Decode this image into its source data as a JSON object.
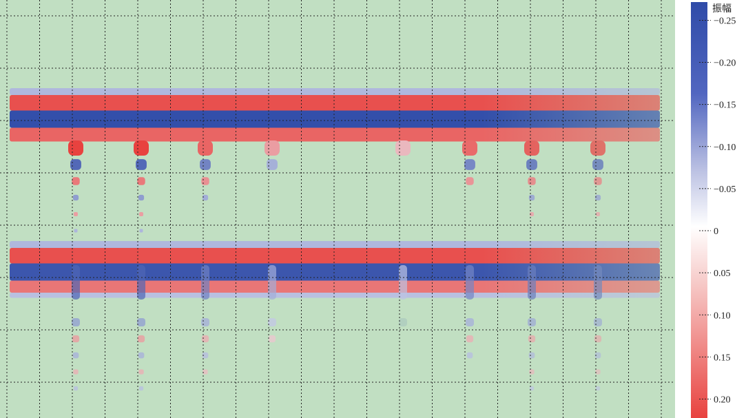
{
  "chart_data": {
    "type": "heatmap",
    "title": "",
    "xlabel": "",
    "ylabel": "",
    "colorbar": {
      "title": "振幅",
      "ticks": [
        {
          "label": "−0.25",
          "value": -0.25
        },
        {
          "label": "−0.20",
          "value": -0.2
        },
        {
          "label": "−0.15",
          "value": -0.15
        },
        {
          "label": "−0.10",
          "value": -0.1
        },
        {
          "label": "−0.05",
          "value": -0.05
        },
        {
          "label": "0",
          "value": 0
        },
        {
          "label": "0.05",
          "value": 0.05
        },
        {
          "label": "0.10",
          "value": 0.1
        },
        {
          "label": "0.15",
          "value": 0.15
        },
        {
          "label": "0.20",
          "value": 0.2
        }
      ],
      "range": [
        -0.27,
        0.22
      ],
      "colors": {
        "negative": "#2f4ba8",
        "zero": "#ffffff",
        "positive": "#e8423f"
      }
    },
    "background_color": "#c1dfc2",
    "grid": true,
    "grid_style": "dotted",
    "reflector_groups": [
      {
        "name": "upper",
        "layers": [
          {
            "amplitude": -0.04,
            "thickness": 0.2
          },
          {
            "amplitude": 0.19,
            "thickness": 0.45
          },
          {
            "amplitude": -0.26,
            "thickness": 0.5
          },
          {
            "amplitude": 0.15,
            "thickness": 0.4
          }
        ]
      },
      {
        "name": "lower",
        "layers": [
          {
            "amplitude": -0.04,
            "thickness": 0.2
          },
          {
            "amplitude": 0.19,
            "thickness": 0.45
          },
          {
            "amplitude": -0.24,
            "thickness": 0.5
          },
          {
            "amplitude": 0.12,
            "thickness": 0.35
          },
          {
            "amplitude": -0.03,
            "thickness": 0.15
          }
        ]
      }
    ],
    "anomalies": [
      {
        "amplitude": 0.22,
        "trail_length": 6
      },
      {
        "amplitude": 0.22,
        "trail_length": 6
      },
      {
        "amplitude": 0.15,
        "trail_length": 4
      },
      {
        "amplitude": 0.06,
        "trail_length": 2
      },
      {
        "amplitude": 0.03,
        "trail_length": 1
      },
      {
        "amplitude": 0.14,
        "trail_length": 3
      },
      {
        "amplitude": 0.18,
        "trail_length": 5
      },
      {
        "amplitude": 0.19,
        "trail_length": 5
      }
    ]
  }
}
